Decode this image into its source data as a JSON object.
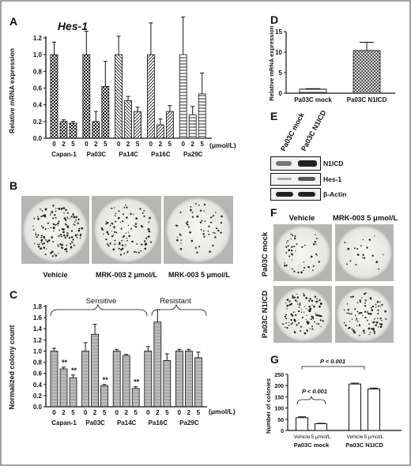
{
  "panel_letters": [
    "A",
    "B",
    "C",
    "D",
    "E",
    "F",
    "G"
  ],
  "panelA": {
    "title": "Hes-1",
    "ylabel": "Relative mRNA expression",
    "unit": "(μmol/L)",
    "doses": [
      "0",
      "2",
      "5"
    ],
    "cell_lines": [
      "Capan-1",
      "Pa03C",
      "Pa14C",
      "Pa16C",
      "Pa29C"
    ],
    "yticks": [
      "0.0",
      "0.2",
      "0.4",
      "0.6",
      "0.8",
      "1.0",
      "1.2"
    ]
  },
  "panelB": {
    "labels": [
      "Vehicle",
      "MRK-003 2 μmol/L",
      "MRK-003 5 μmol/L"
    ]
  },
  "panelC": {
    "ylabel": "Normalized colony count",
    "unit": "(μmol/L)",
    "doses": [
      "0",
      "2",
      "5"
    ],
    "cell_lines": [
      "Capan-1",
      "Pa03C",
      "Pa14C",
      "Pa16C",
      "Pa29C"
    ],
    "groups": [
      "Sensitive",
      "Resistant"
    ],
    "yticks": [
      "0.0",
      "0.2",
      "0.4",
      "0.6",
      "0.8",
      "1.0",
      "1.2",
      "1.4",
      "1.6",
      "1.8"
    ],
    "sig": [
      "**",
      "**",
      "**",
      "**"
    ]
  },
  "panelD": {
    "ylabel": "Relative mRNA expression",
    "categories": [
      "Pa03C mock",
      "Pa03C N1ICD"
    ],
    "yticks": [
      "0",
      "5",
      "10",
      "15"
    ]
  },
  "panelE": {
    "lanes": [
      "Pa03C mock",
      "Pa03C N1ICD"
    ],
    "rows": [
      "N1ICD",
      "Hes-1",
      "β-Actin"
    ]
  },
  "panelF": {
    "cols": [
      "Vehicle",
      "MRK-003 5 μmol/L"
    ],
    "rows": [
      "Pa03C mock",
      "Pa03C N1ICD"
    ]
  },
  "panelG": {
    "ylabel": "Number of colonies",
    "bar_labels": [
      "Vehicle",
      "5 μmol/L",
      "Vehicle",
      "5 μmol/L"
    ],
    "groups": [
      "Pa03C mock",
      "Pa03C N1ICD"
    ],
    "pvals": [
      "P < 0.001",
      "P < 0.001"
    ],
    "yticks": [
      "0",
      "50",
      "100",
      "150",
      "200",
      "250"
    ]
  },
  "chart_data": [
    {
      "panel": "A",
      "type": "bar",
      "title": "Hes-1",
      "ylabel": "Relative mRNA expression",
      "ylim": [
        0,
        1.2
      ],
      "groups": [
        "Capan-1",
        "Pa03C",
        "Pa14C",
        "Pa16C",
        "Pa29C"
      ],
      "categories": [
        "0",
        "2",
        "5"
      ],
      "values": [
        [
          1.0,
          0.2,
          0.18
        ],
        [
          1.0,
          0.2,
          0.62
        ],
        [
          1.0,
          0.45,
          0.32
        ],
        [
          1.0,
          0.16,
          0.32
        ],
        [
          1.0,
          0.28,
          0.53
        ]
      ],
      "errors": [
        [
          0.15,
          0.02,
          0.02
        ],
        [
          0.28,
          0.12,
          0.3
        ],
        [
          0.22,
          0.05,
          0.05
        ],
        [
          0.38,
          0.07,
          0.07
        ],
        [
          0.45,
          0.1,
          0.25
        ]
      ]
    },
    {
      "panel": "C",
      "type": "bar",
      "ylabel": "Normalized colony count",
      "ylim": [
        0,
        1.8
      ],
      "groups": [
        "Capan-1",
        "Pa03C",
        "Pa14C",
        "Pa16C",
        "Pa29C"
      ],
      "categories": [
        "0",
        "2",
        "5"
      ],
      "values": [
        [
          1.0,
          0.68,
          0.52
        ],
        [
          1.0,
          1.3,
          0.38
        ],
        [
          1.0,
          0.92,
          0.33
        ],
        [
          1.0,
          1.52,
          0.83
        ],
        [
          1.0,
          1.0,
          0.88
        ]
      ],
      "errors": [
        [
          0.05,
          0.03,
          0.05
        ],
        [
          0.15,
          0.18,
          0.02
        ],
        [
          0.03,
          0.02,
          0.03
        ],
        [
          0.08,
          0.22,
          0.12
        ],
        [
          0.03,
          0.03,
          0.1
        ]
      ]
    },
    {
      "panel": "D",
      "type": "bar",
      "ylabel": "Relative mRNA expression",
      "ylim": [
        0,
        15
      ],
      "categories": [
        "Pa03C mock",
        "Pa03C N1ICD"
      ],
      "values": [
        1.0,
        10.4
      ],
      "errors": [
        0.1,
        2.0
      ]
    },
    {
      "panel": "G",
      "type": "bar",
      "ylabel": "Number of colonies",
      "ylim": [
        0,
        250
      ],
      "categories": [
        "Pa03C mock Vehicle",
        "Pa03C mock 5 μmol/L",
        "Pa03C N1ICD Vehicle",
        "Pa03C N1ICD 5 μmol/L"
      ],
      "values": [
        57,
        30,
        207,
        185
      ],
      "errors": [
        4,
        2,
        4,
        4
      ]
    }
  ]
}
